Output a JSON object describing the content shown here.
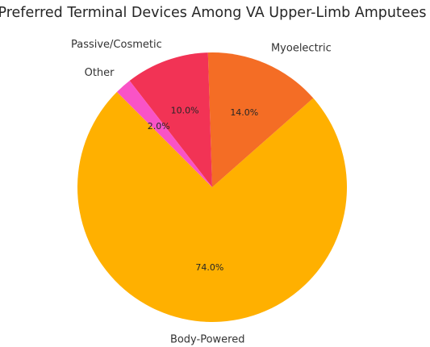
{
  "chart_data": {
    "type": "pie",
    "title": "Preferred Terminal Devices Among VA Upper-Limb Amputees",
    "slices": [
      {
        "label": "Body-Powered",
        "value": 74.0,
        "pct_text": "74.0%",
        "color": "#FFB000"
      },
      {
        "label": "Myoelectric",
        "value": 14.0,
        "pct_text": "14.0%",
        "color": "#F46D25"
      },
      {
        "label": "Passive/Cosmetic",
        "value": 10.0,
        "pct_text": "10.0%",
        "color": "#F23355"
      },
      {
        "label": "Other",
        "value": 2.0,
        "pct_text": "2.0%",
        "color": "#F953C6"
      }
    ],
    "start_angle_deg": 135,
    "direction": "counterclockwise",
    "legend": "none"
  }
}
